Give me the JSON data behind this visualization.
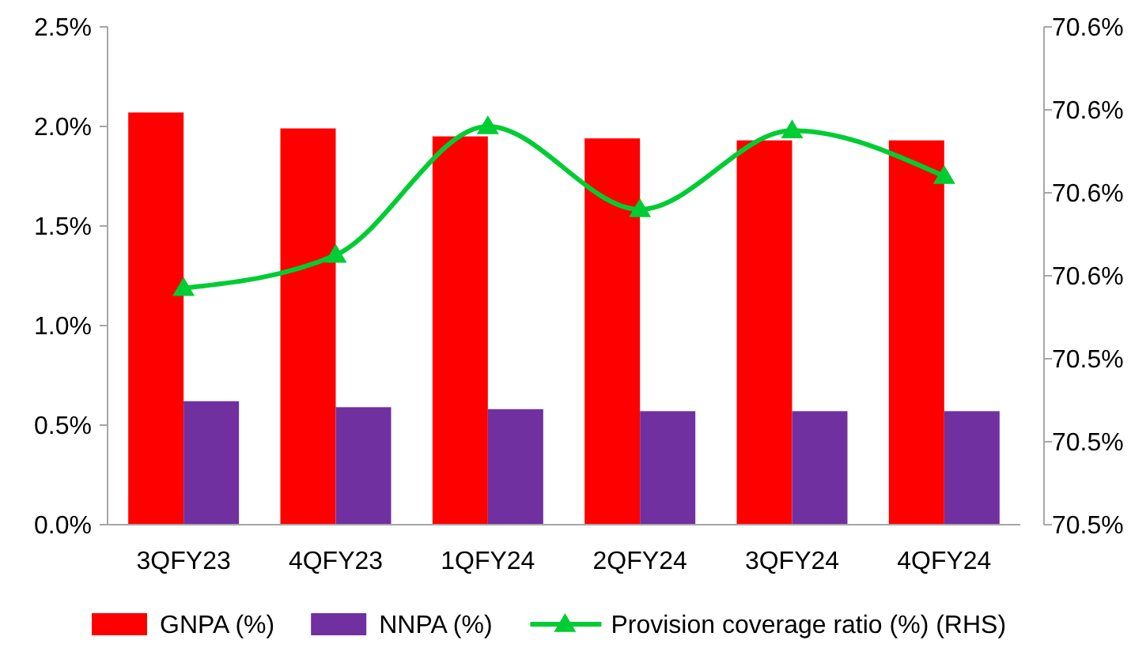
{
  "chart_data": {
    "type": "bar",
    "categories": [
      "3QFY23",
      "4QFY23",
      "1QFY24",
      "2QFY24",
      "3QFY24",
      "4QFY24"
    ],
    "series": [
      {
        "name": "GNPA (%)",
        "color": "#ff0000",
        "values": [
          2.07,
          1.99,
          1.95,
          1.94,
          1.93,
          1.93
        ]
      },
      {
        "name": "NNPA (%)",
        "color": "#7030a0",
        "values": [
          0.62,
          0.59,
          0.58,
          0.57,
          0.57,
          0.57
        ]
      },
      {
        "name": "Provision coverage ratio (%) (RHS)",
        "type": "line",
        "axis": "y2",
        "color": "#00cc33",
        "marker": "triangle",
        "values": [
          70.547,
          70.555,
          70.586,
          70.566,
          70.585,
          70.574
        ]
      }
    ],
    "ylim": [
      0,
      2.5
    ],
    "yticks": [
      {
        "value": 0,
        "label": "0.0%"
      },
      {
        "value": 0.5,
        "label": "0.5%"
      },
      {
        "value": 1,
        "label": "1.0%"
      },
      {
        "value": 1.5,
        "label": "1.5%"
      },
      {
        "value": 2,
        "label": "2.0%"
      },
      {
        "value": 2.5,
        "label": "2.5%"
      }
    ],
    "y2lim": [
      70.49,
      70.61
    ],
    "y2ticks": [
      {
        "value": 70.49,
        "label": "70.5%"
      },
      {
        "value": 70.51,
        "label": "70.5%"
      },
      {
        "value": 70.53,
        "label": "70.5%"
      },
      {
        "value": 70.55,
        "label": "70.6%"
      },
      {
        "value": 70.57,
        "label": "70.6%"
      },
      {
        "value": 70.59,
        "label": "70.6%"
      },
      {
        "value": 70.61,
        "label": "70.6%"
      }
    ],
    "grid": false,
    "legend": "bottom"
  }
}
